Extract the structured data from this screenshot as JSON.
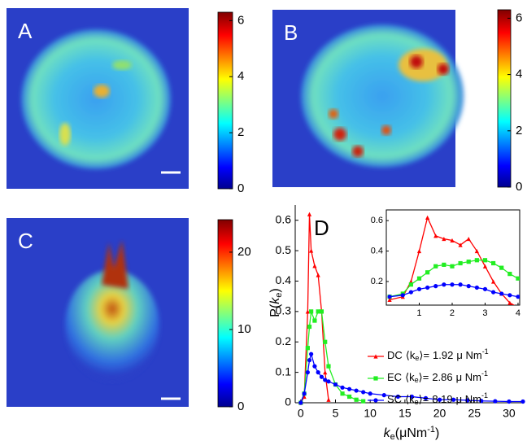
{
  "panels": [
    {
      "label": "A",
      "colorbar": {
        "lim": [
          0,
          6.3
        ],
        "ticks": [
          0,
          2,
          4,
          6
        ]
      }
    },
    {
      "label": "B",
      "colorbar": {
        "lim": [
          0,
          6.3
        ],
        "ticks": [
          0,
          2,
          4,
          6
        ]
      }
    },
    {
      "label": "C",
      "colorbar": {
        "lim": [
          0,
          24.2
        ],
        "ticks": [
          0,
          10,
          20
        ]
      }
    }
  ],
  "chart_data": {
    "type": "line",
    "label": "D",
    "ylabel": {
      "text": "P(",
      "var": "k",
      "sub": "e",
      "close": ")"
    },
    "xlabel": {
      "var": "k",
      "sub": "e",
      "text": "(μNm",
      "sup": "-1",
      "close": ")"
    },
    "legend_format": {
      "open": "⟨k",
      "sub": "e",
      "mid": "⟩=",
      "unit": "μ Nm",
      "sup": "-1"
    },
    "xlim": [
      -0.8,
      32
    ],
    "ylim": [
      0,
      0.65
    ],
    "xticks": [
      0,
      5,
      10,
      15,
      20,
      25,
      30
    ],
    "yticks": [
      0,
      0.1,
      0.2,
      0.3,
      0.4,
      0.5,
      0.6
    ],
    "x": [
      0,
      0.5,
      1,
      1.25,
      1.5,
      2,
      2.5,
      3,
      3.5,
      4,
      5,
      6,
      7,
      8,
      9,
      10,
      12,
      14,
      16,
      18,
      20,
      22,
      24,
      26,
      28,
      30,
      32
    ],
    "series": [
      {
        "name": "DC",
        "mean": 1.92,
        "color": "#ff0000",
        "marker": "triangle",
        "values": [
          0,
          0.02,
          0.3,
          0.62,
          0.5,
          0.45,
          0.42,
          0.3,
          0.1,
          0.01,
          null,
          null,
          null,
          null,
          null,
          null,
          null,
          null,
          null,
          null,
          null,
          null,
          null,
          null,
          null,
          null,
          null
        ]
      },
      {
        "name": "EC",
        "mean": 2.86,
        "color": "#22ee22",
        "marker": "square",
        "values": [
          0,
          0.03,
          0.18,
          0.25,
          0.3,
          0.27,
          0.3,
          0.3,
          0.2,
          0.12,
          0.06,
          0.03,
          0.02,
          0.01,
          0.005,
          null,
          null,
          null,
          null,
          null,
          null,
          null,
          null,
          null,
          null,
          null,
          null
        ]
      },
      {
        "name": "SC",
        "mean": 8.19,
        "color": "#0000ff",
        "marker": "circle",
        "values": [
          0,
          0.03,
          0.1,
          0.14,
          0.16,
          0.12,
          0.1,
          0.085,
          0.075,
          0.07,
          0.06,
          0.05,
          0.045,
          0.04,
          0.035,
          0.03,
          0.025,
          0.02,
          0.02,
          0.015,
          0.01,
          0.01,
          0.008,
          0.006,
          0.005,
          0.004,
          0.004
        ]
      }
    ],
    "inset": {
      "xlim": [
        0,
        4.05
      ],
      "ylim": [
        0.045,
        0.67
      ],
      "xticks": [
        1,
        2,
        3,
        4
      ],
      "yticks": [
        0.2,
        0.4,
        0.6
      ],
      "x": [
        0.1,
        0.5,
        0.75,
        1,
        1.25,
        1.5,
        1.75,
        2,
        2.25,
        2.5,
        2.75,
        3,
        3.25,
        3.5,
        3.75,
        4
      ],
      "series": [
        {
          "values": [
            0.08,
            0.1,
            0.2,
            0.4,
            0.62,
            0.5,
            0.48,
            0.47,
            0.44,
            0.48,
            0.4,
            0.3,
            0.2,
            0.12,
            0.06,
            0.03
          ]
        },
        {
          "values": [
            0.1,
            0.12,
            0.18,
            0.22,
            0.26,
            0.3,
            0.31,
            0.3,
            0.32,
            0.33,
            0.34,
            0.34,
            0.32,
            0.29,
            0.25,
            0.22
          ]
        },
        {
          "values": [
            0.1,
            0.11,
            0.13,
            0.15,
            0.16,
            0.17,
            0.18,
            0.18,
            0.18,
            0.17,
            0.16,
            0.15,
            0.13,
            0.12,
            0.11,
            0.1
          ]
        }
      ]
    }
  }
}
